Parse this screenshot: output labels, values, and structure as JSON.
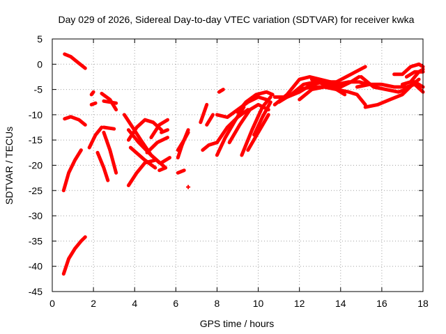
{
  "chart_data": {
    "type": "scatter",
    "title": "Day 029 of 2026, Sidereal Day-to-day VTEC variation (SDTVAR) for receiver kwka",
    "xlabel": "GPS time / hours",
    "ylabel": "SDTVAR / TECUs",
    "xlim": [
      0,
      18
    ],
    "ylim": [
      -45,
      5
    ],
    "xticks": [
      0,
      2,
      4,
      6,
      8,
      10,
      12,
      14,
      16,
      18
    ],
    "yticks": [
      5,
      0,
      -5,
      -10,
      -15,
      -20,
      -25,
      -30,
      -35,
      -40,
      -45
    ],
    "grid": true,
    "series_color": "#ff0000",
    "series": [
      {
        "name": "s1",
        "x": [
          0.6,
          0.9,
          1.2,
          1.6
        ],
        "y": [
          2,
          1.5,
          0.5,
          -0.8
        ]
      },
      {
        "name": "s2",
        "x": [
          0.6,
          0.9,
          1.3,
          1.6
        ],
        "y": [
          -10.8,
          -10.4,
          -11,
          -12
        ]
      },
      {
        "name": "s3",
        "x": [
          0.55,
          0.8,
          1.1,
          1.4
        ],
        "y": [
          -25,
          -21.5,
          -19,
          -17
        ]
      },
      {
        "name": "s4",
        "x": [
          0.55,
          0.8,
          1.1,
          1.4,
          1.6
        ],
        "y": [
          -41.5,
          -38.5,
          -36.5,
          -35,
          -34.2
        ]
      },
      {
        "name": "s5",
        "x": [
          1.8,
          2.1,
          2.4
        ],
        "y": [
          -16.5,
          -14,
          -12.5
        ]
      },
      {
        "name": "s6",
        "x": [
          1.9,
          2.0
        ],
        "y": [
          -6,
          -5.5
        ]
      },
      {
        "name": "s7",
        "x": [
          1.9,
          2.1
        ],
        "y": [
          -8,
          -7.7
        ]
      },
      {
        "name": "s8",
        "x": [
          2.4,
          2.8,
          3.1
        ],
        "y": [
          -5.8,
          -7,
          -9
        ]
      },
      {
        "name": "s9",
        "x": [
          2.5,
          3.1
        ],
        "y": [
          -7.3,
          -7.7
        ]
      },
      {
        "name": "s10",
        "x": [
          2.2,
          2.5,
          2.7
        ],
        "y": [
          -17.5,
          -20.5,
          -23
        ]
      },
      {
        "name": "s11",
        "x": [
          2.5,
          2.8,
          3.1
        ],
        "y": [
          -13.5,
          -17,
          -21.5
        ]
      },
      {
        "name": "s12",
        "x": [
          2.5,
          3.0
        ],
        "y": [
          -12.5,
          -12.8
        ]
      },
      {
        "name": "s13",
        "x": [
          3.5,
          3.9,
          4.3,
          4.8,
          5.2
        ],
        "y": [
          -10,
          -12.5,
          -15,
          -18,
          -19.5
        ]
      },
      {
        "name": "s14",
        "x": [
          3.7,
          4.1,
          4.5,
          4.9,
          5.3
        ],
        "y": [
          -15,
          -12.5,
          -11,
          -11.5,
          -13
        ]
      },
      {
        "name": "s15",
        "x": [
          3.7,
          4.2,
          4.8,
          5.5
        ],
        "y": [
          -13,
          -15.5,
          -18,
          -20.5
        ]
      },
      {
        "name": "s16",
        "x": [
          3.7,
          4.1,
          4.5,
          5.0
        ],
        "y": [
          -24,
          -21.5,
          -19.5,
          -19
        ]
      },
      {
        "name": "s17",
        "x": [
          3.8,
          4.5,
          5.0
        ],
        "y": [
          -16.5,
          -19,
          -20.5
        ]
      },
      {
        "name": "s18",
        "x": [
          4.6,
          5.1,
          5.6
        ],
        "y": [
          -17.5,
          -15.5,
          -14.5
        ]
      },
      {
        "name": "s19",
        "x": [
          4.8,
          5.2,
          5.6
        ],
        "y": [
          -14.5,
          -12,
          -11
        ]
      },
      {
        "name": "s20",
        "x": [
          5.3,
          5.7
        ],
        "y": [
          -19.5,
          -18.5
        ]
      },
      {
        "name": "s21",
        "x": [
          5.2,
          5.5
        ],
        "y": [
          -21,
          -20.5
        ]
      },
      {
        "name": "s22",
        "x": [
          5.3,
          5.6
        ],
        "y": [
          -13.5,
          -13
        ]
      },
      {
        "name": "s23",
        "x": [
          6.1,
          6.3,
          6.6
        ],
        "y": [
          -18.5,
          -16,
          -13
        ]
      },
      {
        "name": "s24",
        "x": [
          6.1,
          6.4,
          6.6
        ],
        "y": [
          -17,
          -15,
          -13.5
        ]
      },
      {
        "name": "s25",
        "x": [
          6.1,
          6.4
        ],
        "y": [
          -21.5,
          -21
        ]
      },
      {
        "name": "s26",
        "x": [
          7.2,
          7.5
        ],
        "y": [
          -11.5,
          -8
        ]
      },
      {
        "name": "s27",
        "x": [
          7.3,
          7.6,
          8.0
        ],
        "y": [
          -17,
          -16,
          -15.5
        ]
      },
      {
        "name": "s28",
        "x": [
          7.5,
          7.8
        ],
        "y": [
          -12,
          -10
        ]
      },
      {
        "name": "s29",
        "x": [
          8.0,
          8.4,
          8.9,
          9.3
        ],
        "y": [
          -18,
          -14.5,
          -11,
          -8.5
        ]
      },
      {
        "name": "s30",
        "x": [
          8.0,
          8.5,
          9.0,
          9.5
        ],
        "y": [
          -15.5,
          -12.5,
          -10.5,
          -9
        ]
      },
      {
        "name": "s31",
        "x": [
          8.0,
          8.5,
          9.0,
          9.5,
          10.0,
          10.4
        ],
        "y": [
          -10,
          -10.5,
          -9,
          -7.5,
          -6.5,
          -7
        ]
      },
      {
        "name": "s32",
        "x": [
          8.1,
          8.3
        ],
        "y": [
          -5.5,
          -5
        ]
      },
      {
        "name": "s33",
        "x": [
          8.6,
          9.1,
          9.6,
          10.0,
          10.5
        ],
        "y": [
          -15.5,
          -12,
          -9,
          -8,
          -9
        ]
      },
      {
        "name": "s34",
        "x": [
          9.0,
          9.4,
          9.9,
          10.4,
          10.7
        ],
        "y": [
          -9.5,
          -7.5,
          -6,
          -5.5,
          -6
        ]
      },
      {
        "name": "s35",
        "x": [
          9.2,
          9.7,
          10.2,
          10.6
        ],
        "y": [
          -18,
          -13,
          -8.5,
          -6.5
        ]
      },
      {
        "name": "s36",
        "x": [
          9.5,
          10.0,
          10.5
        ],
        "y": [
          -17,
          -13.5,
          -10
        ]
      },
      {
        "name": "s37",
        "x": [
          9.8,
          10.2,
          10.6
        ],
        "y": [
          -14,
          -10.5,
          -7.5
        ]
      },
      {
        "name": "s38",
        "x": [
          10.8,
          11.4,
          12.0,
          12.5,
          13.0,
          13.5,
          14.0
        ],
        "y": [
          -8,
          -6,
          -3,
          -2.5,
          -3,
          -3.5,
          -4
        ]
      },
      {
        "name": "s39",
        "x": [
          10.8,
          11.4,
          12.0,
          12.6,
          13.2,
          13.8,
          14.5,
          15.2
        ],
        "y": [
          -6.5,
          -6.5,
          -5.5,
          -4,
          -3.5,
          -3.5,
          -2,
          -0.5
        ]
      },
      {
        "name": "s40",
        "x": [
          11.0,
          11.6,
          12.2,
          12.8,
          13.4,
          14.0,
          14.5,
          14.9
        ],
        "y": [
          -7.5,
          -6,
          -4,
          -3.5,
          -4,
          -4.5,
          -3.5,
          -2.5
        ]
      },
      {
        "name": "s41",
        "x": [
          11.4,
          12.0,
          12.6,
          13.2,
          13.8,
          14.4,
          14.9,
          15.3
        ],
        "y": [
          -6.5,
          -5,
          -4.5,
          -4.5,
          -4,
          -3.5,
          -3.5,
          -4
        ]
      },
      {
        "name": "s42",
        "x": [
          12.0,
          12.6,
          13.2,
          13.8,
          14.4,
          14.8,
          15.2
        ],
        "y": [
          -7,
          -5,
          -4.5,
          -5,
          -5.5,
          -6,
          -8
        ]
      },
      {
        "name": "s43",
        "x": [
          12.6,
          13.2,
          13.8,
          14.2
        ],
        "y": [
          -3,
          -4,
          -5,
          -6
        ]
      },
      {
        "name": "s44",
        "x": [
          14.8,
          15.4,
          16.0,
          16.6,
          17.2,
          17.6,
          18.0
        ],
        "y": [
          -4.5,
          -4,
          -4,
          -4.5,
          -4.5,
          -4,
          -5.5
        ]
      },
      {
        "name": "s45",
        "x": [
          15.0,
          15.6,
          16.2,
          16.8,
          17.2,
          17.6,
          18.0
        ],
        "y": [
          -2.5,
          -4.5,
          -5,
          -5.5,
          -5,
          -3.5,
          -4.5
        ]
      },
      {
        "name": "s46",
        "x": [
          15.2,
          15.8,
          16.4,
          17.0,
          17.5,
          17.8
        ],
        "y": [
          -8.5,
          -8,
          -7,
          -6,
          -4,
          -3
        ]
      },
      {
        "name": "s47",
        "x": [
          16.6,
          17.0,
          17.4,
          17.8,
          18.0
        ],
        "y": [
          -2,
          -2,
          -0.5,
          0,
          -0.5
        ]
      },
      {
        "name": "s48",
        "x": [
          17.0,
          17.4,
          17.8,
          18.0
        ],
        "y": [
          -4,
          -3.5,
          -1.5,
          -1
        ]
      },
      {
        "name": "s49",
        "x": [
          17.2,
          17.6,
          18.0
        ],
        "y": [
          -2.5,
          -1.5,
          -1.5
        ]
      }
    ],
    "isolated_points": [
      {
        "x": 6.6,
        "y": -24.3
      }
    ]
  }
}
